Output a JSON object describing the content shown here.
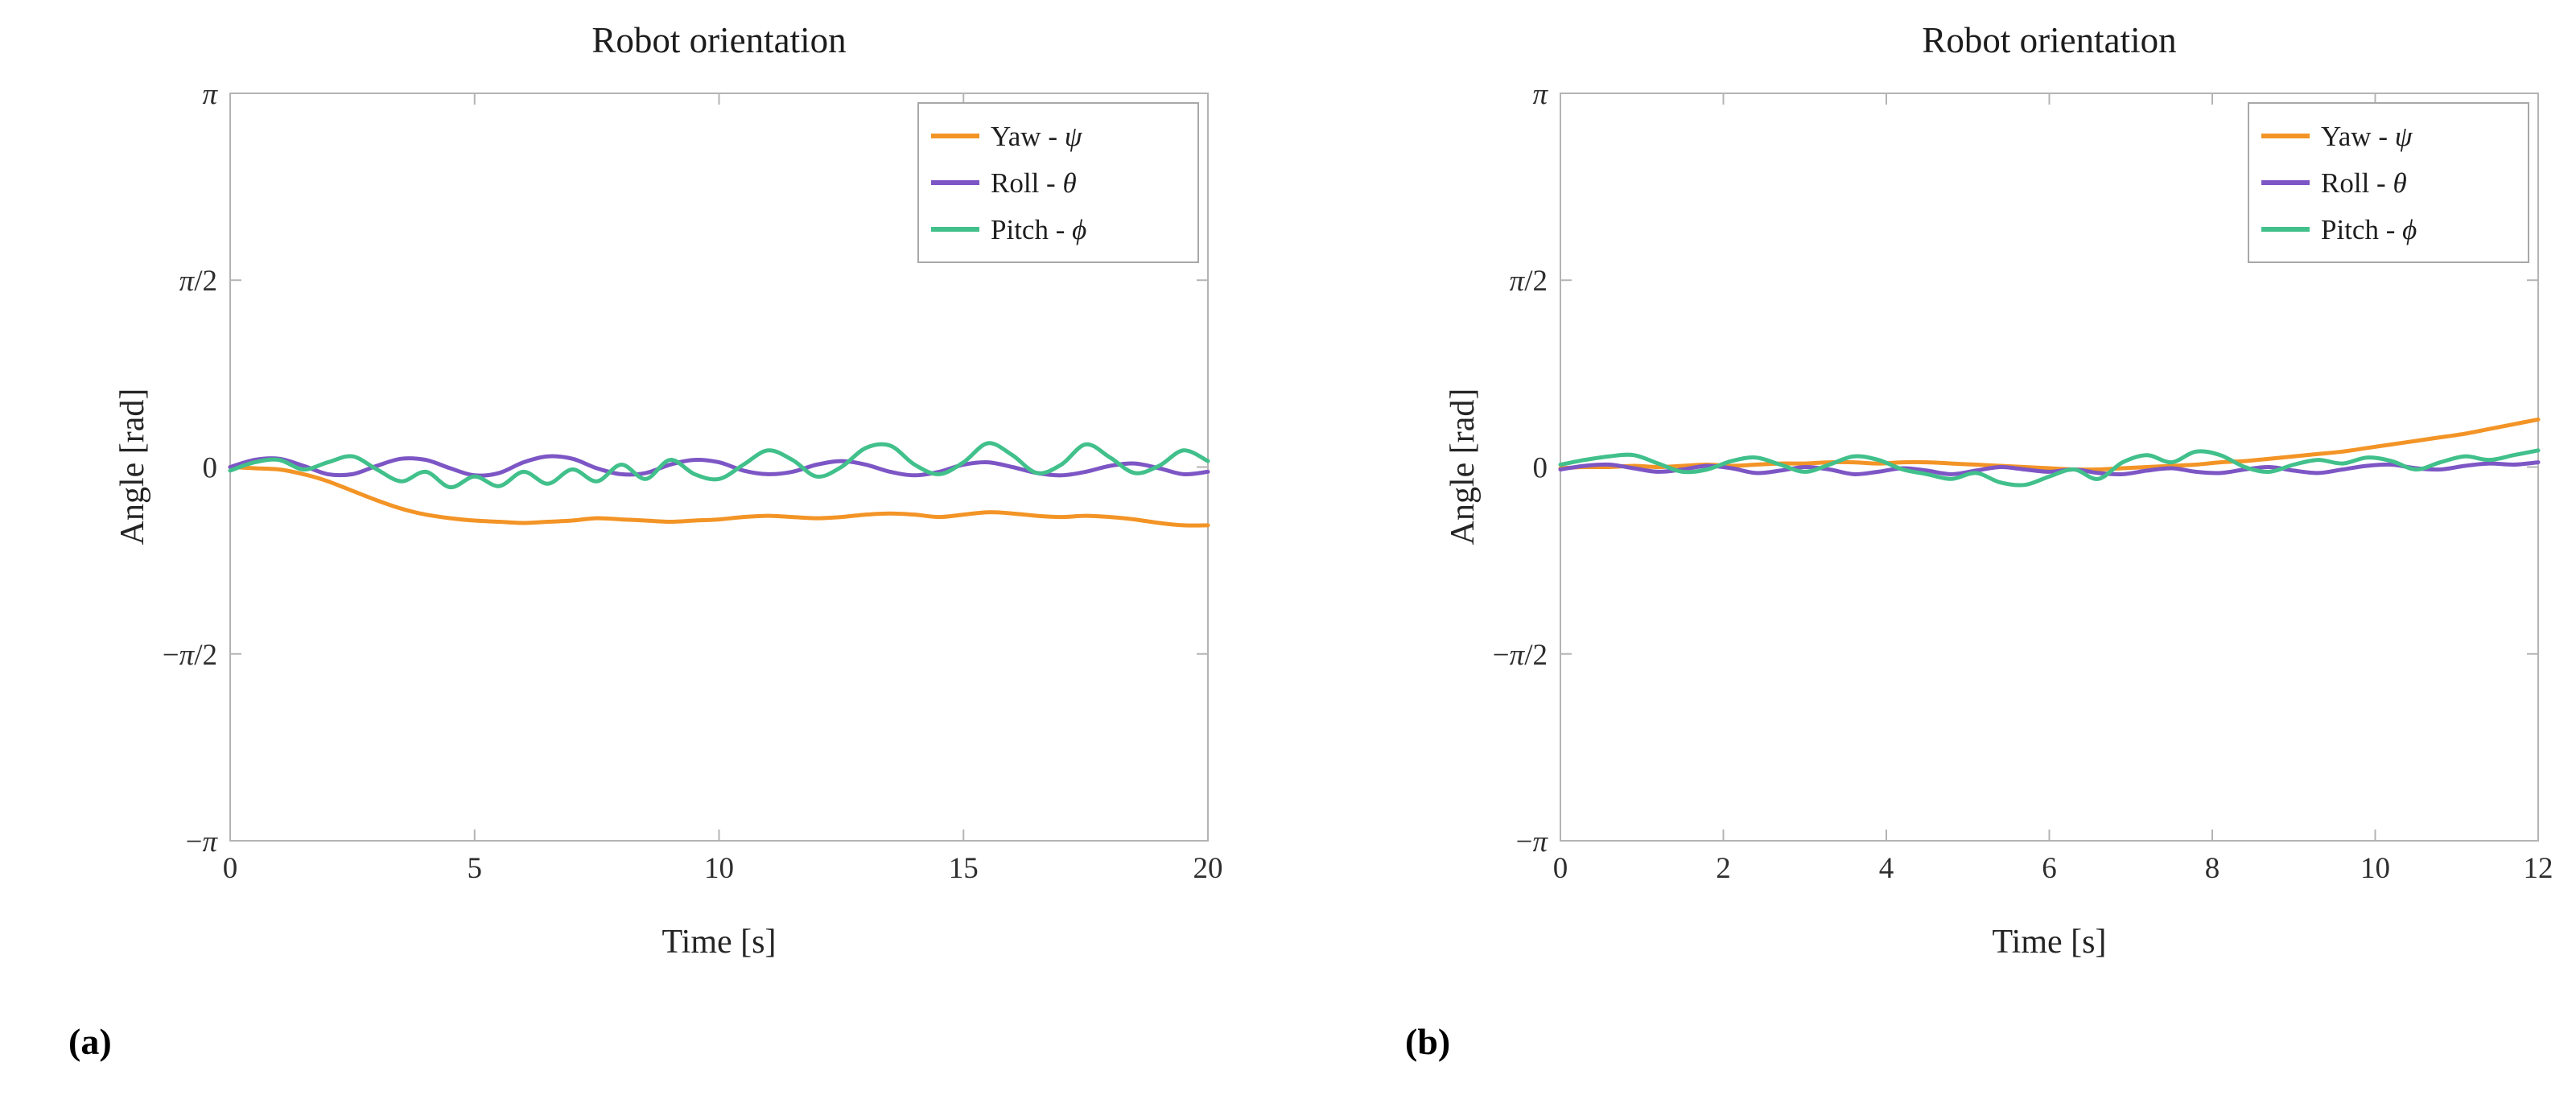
{
  "page": {
    "background": "#ffffff"
  },
  "chart_data": [
    {
      "type": "line",
      "panel_label": "(a)",
      "title": "Robot orientation",
      "xlabel": "Time [s]",
      "ylabel": "Angle [rad]",
      "xlim": [
        0,
        20
      ],
      "ylim": [
        -3.14159,
        3.14159
      ],
      "grid": false,
      "legend": {
        "position": "top-right"
      },
      "x_ticks": {
        "values": [
          0,
          5,
          10,
          15,
          20
        ],
        "labels": [
          "0",
          "5",
          "10",
          "15",
          "20"
        ]
      },
      "y_ticks": {
        "values": [
          3.14159,
          1.5708,
          0,
          -1.5708,
          -3.14159
        ],
        "labels": [
          "π",
          "π/2",
          "0",
          "−π/2",
          "−π"
        ]
      },
      "x_start": 0,
      "x_step": 0.5,
      "series": [
        {
          "name": "Yaw",
          "symbol": "ψ",
          "label": "Yaw - ψ",
          "color": "#F39426",
          "values": [
            0.0,
            -0.01,
            -0.02,
            -0.06,
            -0.12,
            -0.2,
            -0.28,
            -0.35,
            -0.4,
            -0.43,
            -0.45,
            -0.46,
            -0.47,
            -0.46,
            -0.45,
            -0.43,
            -0.44,
            -0.45,
            -0.46,
            -0.45,
            -0.44,
            -0.42,
            -0.41,
            -0.42,
            -0.43,
            -0.42,
            -0.4,
            -0.39,
            -0.4,
            -0.42,
            -0.4,
            -0.38,
            -0.39,
            -0.41,
            -0.42,
            -0.41,
            -0.42,
            -0.44,
            -0.47,
            -0.49,
            -0.49
          ]
        },
        {
          "name": "Roll",
          "symbol": "θ",
          "label": "Roll - θ",
          "color": "#7D56C5",
          "values": [
            0.0,
            0.06,
            0.07,
            0.01,
            -0.06,
            -0.06,
            0.01,
            0.07,
            0.06,
            -0.01,
            -0.07,
            -0.05,
            0.04,
            0.09,
            0.07,
            -0.01,
            -0.06,
            -0.05,
            0.02,
            0.06,
            0.04,
            -0.03,
            -0.06,
            -0.04,
            0.02,
            0.05,
            0.02,
            -0.04,
            -0.07,
            -0.04,
            0.02,
            0.04,
            0.0,
            -0.05,
            -0.07,
            -0.04,
            0.01,
            0.03,
            -0.01,
            -0.06,
            -0.04
          ]
        },
        {
          "name": "Pitch",
          "symbol": "ϕ",
          "label": "Pitch - ϕ",
          "color": "#41C08B",
          "values": [
            -0.03,
            0.04,
            0.06,
            -0.02,
            0.04,
            0.09,
            -0.02,
            -0.12,
            -0.04,
            -0.17,
            -0.08,
            -0.16,
            -0.04,
            -0.14,
            -0.02,
            -0.12,
            0.02,
            -0.1,
            0.06,
            -0.06,
            -0.1,
            0.02,
            0.14,
            0.06,
            -0.08,
            0.0,
            0.16,
            0.18,
            0.02,
            -0.06,
            0.04,
            0.2,
            0.1,
            -0.05,
            0.02,
            0.19,
            0.08,
            -0.05,
            0.01,
            0.14,
            0.05
          ]
        }
      ]
    },
    {
      "type": "line",
      "panel_label": "(b)",
      "title": "Robot orientation",
      "xlabel": "Time [s]",
      "ylabel": "Angle [rad]",
      "xlim": [
        0,
        12
      ],
      "ylim": [
        -3.14159,
        3.14159
      ],
      "grid": false,
      "legend": {
        "position": "top-right"
      },
      "x_ticks": {
        "values": [
          0,
          2,
          4,
          6,
          8,
          10,
          12
        ],
        "labels": [
          "0",
          "2",
          "4",
          "6",
          "8",
          "10",
          "12"
        ]
      },
      "y_ticks": {
        "values": [
          3.14159,
          1.5708,
          0,
          -1.5708,
          -3.14159
        ],
        "labels": [
          "π",
          "π/2",
          "0",
          "−π/2",
          "−π"
        ]
      },
      "x_start": 0,
      "x_step": 0.3,
      "series": [
        {
          "name": "Yaw",
          "symbol": "ψ",
          "label": "Yaw - ψ",
          "color": "#F39426",
          "values": [
            -0.01,
            0.0,
            0.0,
            0.01,
            0.0,
            0.01,
            0.02,
            0.01,
            0.02,
            0.03,
            0.03,
            0.04,
            0.04,
            0.03,
            0.04,
            0.04,
            0.03,
            0.02,
            0.01,
            0.0,
            -0.01,
            -0.02,
            -0.02,
            -0.01,
            0.0,
            0.01,
            0.02,
            0.04,
            0.05,
            0.07,
            0.09,
            0.11,
            0.13,
            0.16,
            0.19,
            0.22,
            0.25,
            0.28,
            0.32,
            0.36,
            0.4
          ]
        },
        {
          "name": "Roll",
          "symbol": "θ",
          "label": "Roll - θ",
          "color": "#7D56C5",
          "values": [
            -0.02,
            0.01,
            0.02,
            -0.01,
            -0.04,
            -0.02,
            0.01,
            -0.01,
            -0.05,
            -0.03,
            0.0,
            -0.02,
            -0.06,
            -0.04,
            -0.01,
            -0.03,
            -0.06,
            -0.03,
            0.0,
            -0.02,
            -0.04,
            -0.02,
            -0.05,
            -0.06,
            -0.03,
            -0.01,
            -0.04,
            -0.05,
            -0.02,
            0.0,
            -0.03,
            -0.05,
            -0.02,
            0.01,
            0.02,
            -0.01,
            -0.02,
            0.01,
            0.03,
            0.02,
            0.04
          ]
        },
        {
          "name": "Pitch",
          "symbol": "ϕ",
          "label": "Pitch - ϕ",
          "color": "#41C08B",
          "values": [
            0.02,
            0.06,
            0.09,
            0.1,
            0.03,
            -0.04,
            -0.02,
            0.05,
            0.08,
            0.02,
            -0.04,
            0.02,
            0.09,
            0.06,
            -0.02,
            -0.06,
            -0.1,
            -0.05,
            -0.13,
            -0.15,
            -0.08,
            -0.02,
            -0.1,
            0.04,
            0.1,
            0.04,
            0.13,
            0.1,
            0.0,
            -0.04,
            0.02,
            0.06,
            0.03,
            0.08,
            0.05,
            -0.02,
            0.04,
            0.09,
            0.06,
            0.1,
            0.14
          ]
        }
      ]
    }
  ]
}
